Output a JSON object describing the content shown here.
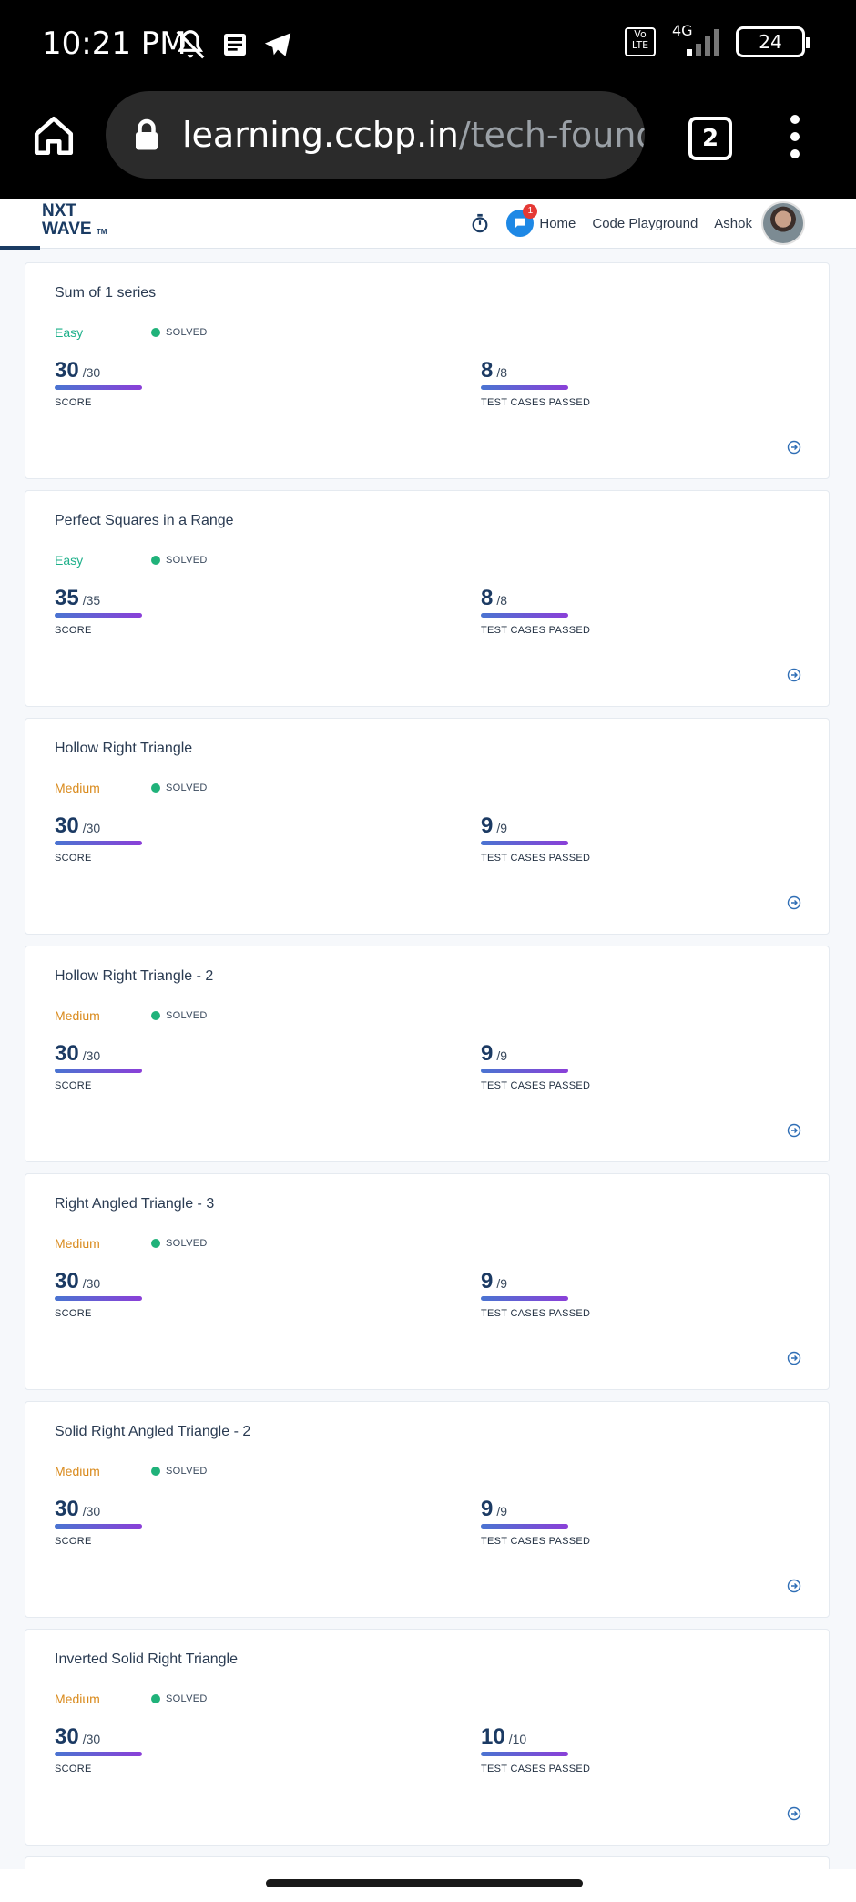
{
  "status_bar": {
    "time": "10:21 PM",
    "volte": "Vo LTE",
    "network": "4G",
    "battery": "24",
    "icons": [
      "mute-icon",
      "news-icon",
      "telegram-icon",
      "signal-icon"
    ]
  },
  "browser": {
    "url_domain": "learning.ccbp.in",
    "url_path": "/tech-founda",
    "tab_count": "2"
  },
  "header": {
    "logo_line1": "NXT",
    "logo_line2": "WAVE",
    "logo_tm": "TM",
    "chat_badge": "1",
    "nav_home": "Home",
    "nav_playground": "Code Playground",
    "user_name": "Ashok"
  },
  "labels": {
    "solved": "SOLVED",
    "score": "SCORE",
    "tests": "TEST CASES PASSED"
  },
  "colors": {
    "easy": "#1db08a",
    "medium": "#d98a1c"
  },
  "problems": [
    {
      "title": "Sum of 1 series",
      "difficulty": "Easy",
      "level": "easy",
      "score": "30",
      "score_max": "/30",
      "tests": "8",
      "tests_max": "/8"
    },
    {
      "title": "Perfect Squares in a Range",
      "difficulty": "Easy",
      "level": "easy",
      "score": "35",
      "score_max": "/35",
      "tests": "8",
      "tests_max": "/8"
    },
    {
      "title": "Hollow Right Triangle",
      "difficulty": "Medium",
      "level": "medium",
      "score": "30",
      "score_max": "/30",
      "tests": "9",
      "tests_max": "/9"
    },
    {
      "title": "Hollow Right Triangle - 2",
      "difficulty": "Medium",
      "level": "medium",
      "score": "30",
      "score_max": "/30",
      "tests": "9",
      "tests_max": "/9"
    },
    {
      "title": "Right Angled Triangle - 3",
      "difficulty": "Medium",
      "level": "medium",
      "score": "30",
      "score_max": "/30",
      "tests": "9",
      "tests_max": "/9"
    },
    {
      "title": "Solid Right Angled Triangle - 2",
      "difficulty": "Medium",
      "level": "medium",
      "score": "30",
      "score_max": "/30",
      "tests": "9",
      "tests_max": "/9"
    },
    {
      "title": "Inverted Solid Right Triangle",
      "difficulty": "Medium",
      "level": "medium",
      "score": "30",
      "score_max": "/30",
      "tests": "10",
      "tests_max": "/10"
    }
  ]
}
